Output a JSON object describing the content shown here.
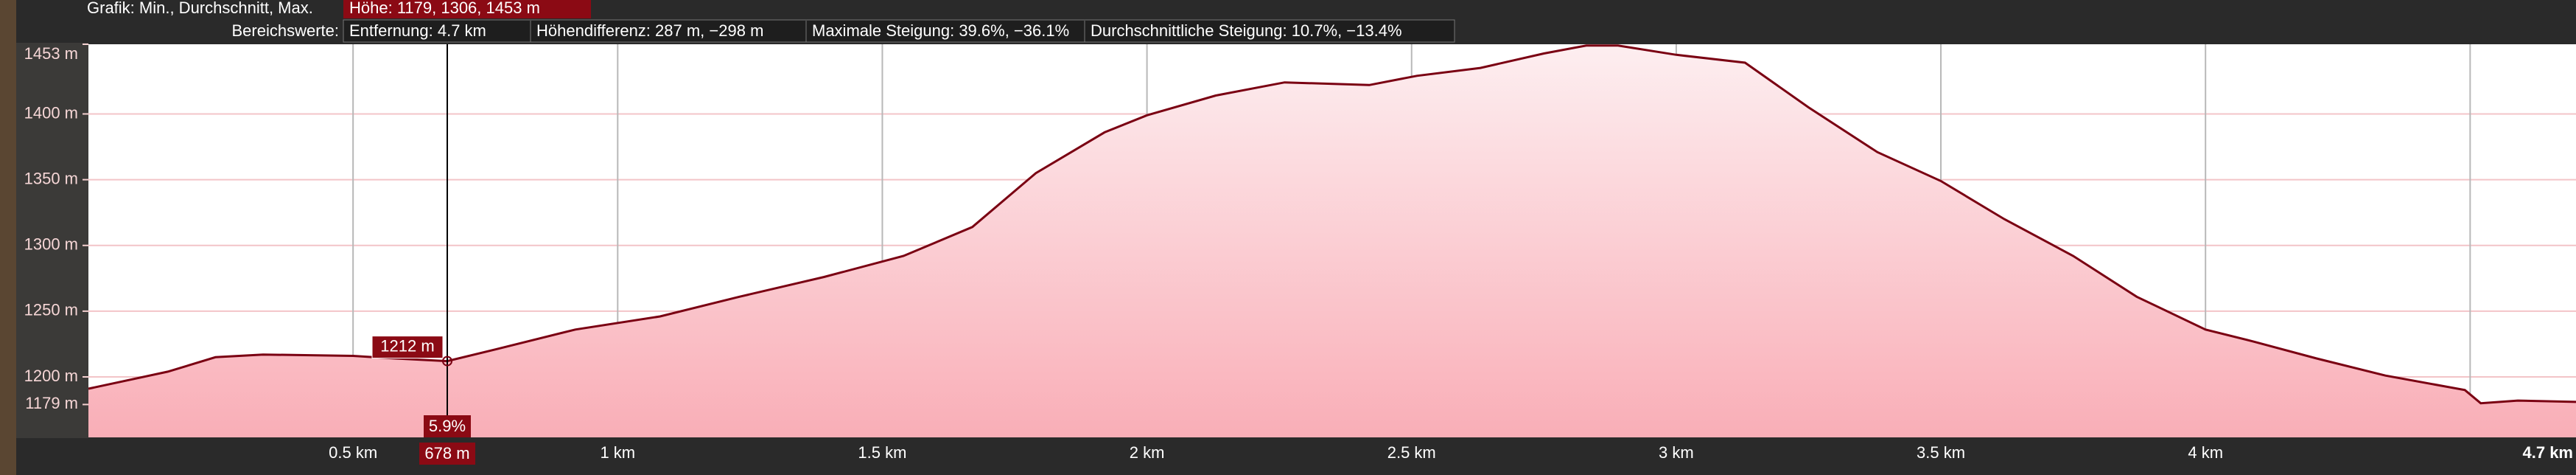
{
  "header": {
    "row1": {
      "label": "Grafik: Min., Durchschnitt, Max.",
      "value": "Höhe: 1179, 1306, 1453 m"
    },
    "row2": {
      "label": "Bereichswerte:",
      "items": [
        "Entfernung: 4.7 km",
        "Höhendifferenz: 287 m, −298 m",
        "Maximale Steigung: 39.6%, −36.1%",
        "Durchschnittliche Steigung: 10.7%, −13.4%"
      ]
    }
  },
  "chart_data": {
    "type": "area",
    "color": "#7a0012",
    "x": [
      0,
      0.15,
      0.24,
      0.33,
      0.5,
      0.58,
      0.678,
      0.77,
      0.92,
      1.08,
      1.23,
      1.39,
      1.54,
      1.67,
      1.79,
      1.92,
      2.0,
      2.13,
      2.26,
      2.42,
      2.51,
      2.63,
      2.75,
      2.83,
      2.89,
      3.0,
      3.13,
      3.25,
      3.38,
      3.5,
      3.62,
      3.75,
      3.87,
      4.0,
      4.09,
      4.21,
      4.34,
      4.49,
      4.52,
      4.59,
      4.7
    ],
    "values": [
      1191,
      1204,
      1215,
      1217,
      1216,
      1214,
      1212,
      1221,
      1236,
      1246,
      1261,
      1276,
      1292,
      1314,
      1355,
      1386,
      1399,
      1414,
      1424,
      1422,
      1429,
      1435,
      1446,
      1452,
      1452,
      1445,
      1439,
      1405,
      1371,
      1349,
      1320,
      1292,
      1261,
      1236,
      1227,
      1214,
      1201,
      1190,
      1180,
      1182,
      1181
    ],
    "xlim": [
      0,
      4.7
    ],
    "ylim": [
      1154,
      1453
    ],
    "xticks": [
      {
        "value": 0.5,
        "label": "0.5 km"
      },
      {
        "value": 1,
        "label": "1 km"
      },
      {
        "value": 1.5,
        "label": "1.5 km"
      },
      {
        "value": 2,
        "label": "2 km"
      },
      {
        "value": 2.5,
        "label": "2.5 km"
      },
      {
        "value": 3,
        "label": "3 km"
      },
      {
        "value": 3.5,
        "label": "3.5 km"
      },
      {
        "value": 4,
        "label": "4 km"
      },
      {
        "value": 4.7,
        "label": "4.7 km"
      }
    ],
    "xgrid": [
      0.5,
      1,
      1.5,
      2,
      2.5,
      3,
      3.5,
      4,
      4.5
    ],
    "yticks": [
      {
        "value": 1453,
        "label": "1453 m"
      },
      {
        "value": 1400,
        "label": "1400 m"
      },
      {
        "value": 1350,
        "label": "1350 m"
      },
      {
        "value": 1300,
        "label": "1300 m"
      },
      {
        "value": 1250,
        "label": "1250 m"
      },
      {
        "value": 1200,
        "label": "1200 m"
      },
      {
        "value": 1179,
        "label": "1179 m"
      }
    ],
    "ygrid": [
      1400,
      1350,
      1300,
      1250,
      1200
    ],
    "cursor": {
      "x": {
        "value": 0.678,
        "label": "678 m"
      },
      "elevation": {
        "value": 1212,
        "label": "1212 m"
      },
      "slope": "5.9%"
    }
  }
}
